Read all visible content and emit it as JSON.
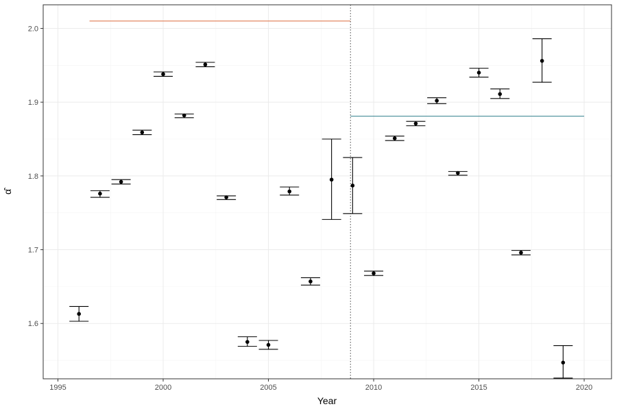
{
  "chart_data": {
    "type": "scatter",
    "title": "",
    "xlabel": "Year",
    "ylabel": "α̂",
    "xlim": [
      1994.3,
      2021.3
    ],
    "ylim": [
      1.525,
      2.032
    ],
    "grid": true,
    "legend": "none",
    "x_ticks": [
      1995,
      2000,
      2005,
      2010,
      2015,
      2020
    ],
    "x_tick_labels": [
      "1995",
      "2000",
      "2005",
      "2010",
      "2015",
      "2020"
    ],
    "y_ticks": [
      1.6,
      1.7,
      1.8,
      1.9,
      2.0
    ],
    "y_tick_labels": [
      "1.6",
      "1.7",
      "1.8",
      "1.9",
      "2.0"
    ],
    "points": [
      {
        "x": 1996,
        "y": 1.613,
        "lo": 1.603,
        "hi": 1.623
      },
      {
        "x": 1997,
        "y": 1.776,
        "lo": 1.771,
        "hi": 1.78
      },
      {
        "x": 1998,
        "y": 1.792,
        "lo": 1.789,
        "hi": 1.795
      },
      {
        "x": 1999,
        "y": 1.859,
        "lo": 1.856,
        "hi": 1.862
      },
      {
        "x": 2000,
        "y": 1.938,
        "lo": 1.935,
        "hi": 1.941
      },
      {
        "x": 2001,
        "y": 1.882,
        "lo": 1.879,
        "hi": 1.884
      },
      {
        "x": 2002,
        "y": 1.951,
        "lo": 1.948,
        "hi": 1.954
      },
      {
        "x": 2003,
        "y": 1.771,
        "lo": 1.768,
        "hi": 1.773
      },
      {
        "x": 2004,
        "y": 1.575,
        "lo": 1.569,
        "hi": 1.582
      },
      {
        "x": 2005,
        "y": 1.571,
        "lo": 1.565,
        "hi": 1.577
      },
      {
        "x": 2006,
        "y": 1.779,
        "lo": 1.774,
        "hi": 1.785
      },
      {
        "x": 2007,
        "y": 1.657,
        "lo": 1.652,
        "hi": 1.662
      },
      {
        "x": 2008,
        "y": 1.795,
        "lo": 1.741,
        "hi": 1.85
      },
      {
        "x": 2009,
        "y": 1.787,
        "lo": 1.749,
        "hi": 1.825
      },
      {
        "x": 2010,
        "y": 1.668,
        "lo": 1.665,
        "hi": 1.671
      },
      {
        "x": 2011,
        "y": 1.851,
        "lo": 1.848,
        "hi": 1.854
      },
      {
        "x": 2012,
        "y": 1.871,
        "lo": 1.868,
        "hi": 1.874
      },
      {
        "x": 2013,
        "y": 1.902,
        "lo": 1.898,
        "hi": 1.906
      },
      {
        "x": 2014,
        "y": 1.804,
        "lo": 1.801,
        "hi": 1.806
      },
      {
        "x": 2015,
        "y": 1.94,
        "lo": 1.934,
        "hi": 1.946
      },
      {
        "x": 2016,
        "y": 1.911,
        "lo": 1.905,
        "hi": 1.918
      },
      {
        "x": 2017,
        "y": 1.696,
        "lo": 1.693,
        "hi": 1.699
      },
      {
        "x": 2018,
        "y": 1.956,
        "lo": 1.927,
        "hi": 1.986
      },
      {
        "x": 2019,
        "y": 1.547,
        "lo": 1.526,
        "hi": 1.57
      }
    ],
    "reference_lines": [
      {
        "orientation": "horizontal",
        "y": 2.01,
        "x_start": 1996.5,
        "x_end": 2008.9,
        "color": "#e07b53"
      },
      {
        "orientation": "horizontal",
        "y": 1.881,
        "x_start": 2008.9,
        "x_end": 2020.0,
        "color": "#2f7f8c"
      },
      {
        "orientation": "vertical",
        "x": 2008.9,
        "style": "dotted",
        "color": "#555555"
      }
    ]
  }
}
